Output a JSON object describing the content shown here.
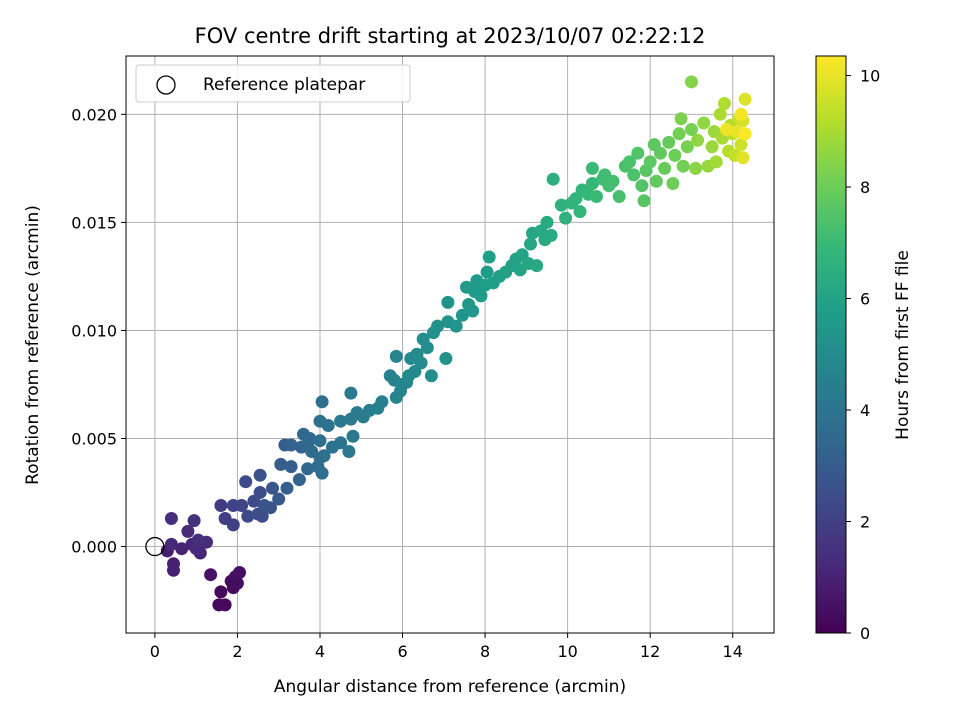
{
  "chart_data": {
    "type": "scatter",
    "title": "FOV centre drift starting at 2023/10/07 02:22:12",
    "xlabel": "Angular distance from reference (arcmin)",
    "ylabel": "Rotation from reference (arcmin)",
    "xlim": [
      -0.7,
      15.0
    ],
    "ylim": [
      -0.004,
      0.0227
    ],
    "x_ticks": [
      0,
      2,
      4,
      6,
      8,
      10,
      12,
      14
    ],
    "x_tick_labels": [
      "0",
      "2",
      "4",
      "6",
      "8",
      "10",
      "12",
      "14"
    ],
    "y_ticks": [
      0.0,
      0.005,
      0.01,
      0.015,
      0.02
    ],
    "y_tick_labels": [
      "0.000",
      "0.005",
      "0.010",
      "0.015",
      "0.020"
    ],
    "grid": true,
    "legend": {
      "placement": "top-left",
      "entries": [
        {
          "label": "Reference platepar",
          "marker": "open-circle"
        }
      ]
    },
    "reference_point": {
      "x": 0.0,
      "y": 0.0
    },
    "colorbar": {
      "label": "Hours from first FF file",
      "range": [
        0,
        10.35
      ],
      "ticks": [
        0,
        2,
        4,
        6,
        8,
        10
      ],
      "tick_labels": [
        "0",
        "2",
        "4",
        "6",
        "8",
        "10"
      ],
      "colormap": "viridis"
    },
    "colormap_stops": [
      "#440154",
      "#482878",
      "#3e4989",
      "#31688e",
      "#26828e",
      "#1f9e89",
      "#35b779",
      "#6ece58",
      "#b5de2b",
      "#fde725"
    ],
    "points": [
      [
        1.55,
        -0.0027,
        0.2
      ],
      [
        1.7,
        -0.0027,
        0.2
      ],
      [
        1.6,
        -0.0021,
        0.25
      ],
      [
        1.9,
        -0.0019,
        0.3
      ],
      [
        1.85,
        -0.0016,
        0.3
      ],
      [
        2.0,
        -0.0017,
        0.35
      ],
      [
        1.95,
        -0.0014,
        0.4
      ],
      [
        2.05,
        -0.0012,
        0.45
      ],
      [
        1.35,
        -0.0013,
        0.5
      ],
      [
        0.3,
        -0.0002,
        0.8
      ],
      [
        0.45,
        -0.0008,
        0.9
      ],
      [
        0.45,
        -0.0011,
        0.9
      ],
      [
        0.65,
        -0.0001,
        1.0
      ],
      [
        0.9,
        0.0001,
        1.1
      ],
      [
        1.1,
        -0.0003,
        1.1
      ],
      [
        1.0,
        -0.0001,
        1.2
      ],
      [
        0.4,
        0.0001,
        1.2
      ],
      [
        1.25,
        0.0002,
        1.3
      ],
      [
        0.8,
        0.0007,
        1.3
      ],
      [
        1.05,
        0.0003,
        1.4
      ],
      [
        0.4,
        0.0013,
        1.4
      ],
      [
        0.95,
        0.0012,
        1.5
      ],
      [
        1.6,
        0.0019,
        1.8
      ],
      [
        1.7,
        0.0013,
        1.9
      ],
      [
        1.9,
        0.001,
        2.0
      ],
      [
        1.9,
        0.0019,
        2.1
      ],
      [
        2.1,
        0.0019,
        2.2
      ],
      [
        2.25,
        0.0014,
        2.3
      ],
      [
        2.2,
        0.003,
        2.3
      ],
      [
        2.4,
        0.0021,
        2.4
      ],
      [
        2.5,
        0.0015,
        2.5
      ],
      [
        2.55,
        0.0025,
        2.5
      ],
      [
        2.6,
        0.0014,
        2.5
      ],
      [
        2.55,
        0.0033,
        2.6
      ],
      [
        2.65,
        0.0019,
        2.7
      ],
      [
        2.8,
        0.0018,
        2.7
      ],
      [
        2.85,
        0.0027,
        2.8
      ],
      [
        3.0,
        0.0022,
        2.9
      ],
      [
        3.05,
        0.0038,
        3.0
      ],
      [
        3.15,
        0.0047,
        3.0
      ],
      [
        3.2,
        0.0027,
        3.1
      ],
      [
        3.3,
        0.0037,
        3.1
      ],
      [
        3.3,
        0.0047,
        3.2
      ],
      [
        3.5,
        0.0031,
        3.3
      ],
      [
        3.55,
        0.0046,
        3.3
      ],
      [
        3.6,
        0.0052,
        3.4
      ],
      [
        3.7,
        0.0036,
        3.4
      ],
      [
        3.7,
        0.0047,
        3.5
      ],
      [
        3.75,
        0.005,
        3.5
      ],
      [
        3.8,
        0.0044,
        3.6
      ],
      [
        3.95,
        0.0037,
        3.6
      ],
      [
        4.0,
        0.0041,
        3.7
      ],
      [
        4.05,
        0.0034,
        3.7
      ],
      [
        4.0,
        0.0049,
        3.7
      ],
      [
        4.1,
        0.0042,
        3.8
      ],
      [
        4.0,
        0.0058,
        3.8
      ],
      [
        4.05,
        0.0067,
        3.8
      ],
      [
        4.2,
        0.0056,
        3.9
      ],
      [
        4.3,
        0.0046,
        3.9
      ],
      [
        4.5,
        0.0048,
        4.0
      ],
      [
        4.5,
        0.0058,
        4.1
      ],
      [
        4.7,
        0.0044,
        4.1
      ],
      [
        4.75,
        0.0059,
        4.2
      ],
      [
        4.8,
        0.0051,
        4.2
      ],
      [
        4.75,
        0.0071,
        4.2
      ],
      [
        4.9,
        0.0062,
        4.3
      ],
      [
        5.05,
        0.006,
        4.3
      ],
      [
        5.2,
        0.0063,
        4.4
      ],
      [
        5.5,
        0.0067,
        4.5
      ],
      [
        5.4,
        0.0064,
        4.5
      ],
      [
        5.7,
        0.0079,
        4.6
      ],
      [
        5.8,
        0.0077,
        4.6
      ],
      [
        5.85,
        0.0069,
        4.7
      ],
      [
        5.85,
        0.0088,
        4.7
      ],
      [
        5.95,
        0.0072,
        4.7
      ],
      [
        6.0,
        0.0075,
        4.8
      ],
      [
        6.1,
        0.0076,
        4.8
      ],
      [
        6.15,
        0.0079,
        4.9
      ],
      [
        6.3,
        0.0081,
        4.9
      ],
      [
        6.2,
        0.0087,
        4.9
      ],
      [
        6.35,
        0.0089,
        5.0
      ],
      [
        6.45,
        0.0085,
        5.0
      ],
      [
        6.5,
        0.0096,
        5.1
      ],
      [
        6.6,
        0.0092,
        5.1
      ],
      [
        6.7,
        0.0079,
        5.1
      ],
      [
        6.75,
        0.0099,
        5.2
      ],
      [
        6.85,
        0.0102,
        5.2
      ],
      [
        7.05,
        0.0087,
        5.3
      ],
      [
        7.1,
        0.0104,
        5.3
      ],
      [
        7.1,
        0.0113,
        5.3
      ],
      [
        7.3,
        0.0102,
        5.4
      ],
      [
        7.45,
        0.0107,
        5.4
      ],
      [
        7.6,
        0.0112,
        5.5
      ],
      [
        7.55,
        0.012,
        5.5
      ],
      [
        7.7,
        0.0109,
        5.5
      ],
      [
        7.75,
        0.0118,
        5.6
      ],
      [
        7.8,
        0.0123,
        5.6
      ],
      [
        7.9,
        0.0116,
        5.7
      ],
      [
        8.0,
        0.0121,
        5.7
      ],
      [
        8.05,
        0.0127,
        5.7
      ],
      [
        8.1,
        0.0134,
        5.8
      ],
      [
        8.2,
        0.0122,
        5.8
      ],
      [
        8.35,
        0.0125,
        5.8
      ],
      [
        8.5,
        0.0127,
        5.9
      ],
      [
        8.65,
        0.013,
        5.9
      ],
      [
        8.75,
        0.0133,
        5.9
      ],
      [
        8.85,
        0.0128,
        6.0
      ],
      [
        8.9,
        0.0135,
        6.0
      ],
      [
        9.05,
        0.0131,
        6.1
      ],
      [
        9.1,
        0.014,
        6.1
      ],
      [
        9.15,
        0.0145,
        6.1
      ],
      [
        9.25,
        0.013,
        6.2
      ],
      [
        9.35,
        0.0146,
        6.2
      ],
      [
        9.45,
        0.0142,
        6.3
      ],
      [
        9.6,
        0.0144,
        6.3
      ],
      [
        9.5,
        0.015,
        6.3
      ],
      [
        9.65,
        0.017,
        6.5
      ],
      [
        9.85,
        0.0158,
        6.6
      ],
      [
        9.95,
        0.0152,
        6.6
      ],
      [
        10.1,
        0.0159,
        6.7
      ],
      [
        10.2,
        0.0161,
        6.7
      ],
      [
        10.3,
        0.0155,
        6.8
      ],
      [
        10.35,
        0.0165,
        6.8
      ],
      [
        10.5,
        0.0163,
        6.9
      ],
      [
        10.6,
        0.0168,
        6.9
      ],
      [
        10.6,
        0.0175,
        7.0
      ],
      [
        10.7,
        0.0162,
        7.0
      ],
      [
        10.85,
        0.017,
        7.1
      ],
      [
        10.9,
        0.0172,
        7.1
      ],
      [
        11.0,
        0.0167,
        7.2
      ],
      [
        11.1,
        0.0169,
        7.2
      ],
      [
        11.25,
        0.0162,
        7.3
      ],
      [
        11.4,
        0.0176,
        7.3
      ],
      [
        11.5,
        0.0178,
        7.4
      ],
      [
        11.6,
        0.0172,
        7.4
      ],
      [
        11.7,
        0.0182,
        7.5
      ],
      [
        11.8,
        0.0167,
        7.5
      ],
      [
        11.9,
        0.0174,
        7.6
      ],
      [
        11.85,
        0.016,
        7.6
      ],
      [
        12.0,
        0.0178,
        7.7
      ],
      [
        12.1,
        0.0186,
        7.7
      ],
      [
        12.15,
        0.0169,
        7.8
      ],
      [
        12.25,
        0.0182,
        7.8
      ],
      [
        12.35,
        0.0175,
        7.9
      ],
      [
        12.45,
        0.0187,
        7.9
      ],
      [
        12.55,
        0.0168,
        8.0
      ],
      [
        12.6,
        0.0181,
        8.0
      ],
      [
        12.7,
        0.0191,
        8.1
      ],
      [
        12.8,
        0.0176,
        8.1
      ],
      [
        12.9,
        0.0185,
        8.2
      ],
      [
        13.0,
        0.0193,
        8.2
      ],
      [
        12.75,
        0.0198,
        8.3
      ],
      [
        13.0,
        0.0215,
        8.4
      ],
      [
        13.1,
        0.0175,
        8.5
      ],
      [
        13.15,
        0.0188,
        8.6
      ],
      [
        13.3,
        0.0196,
        8.6
      ],
      [
        13.4,
        0.0176,
        8.7
      ],
      [
        13.5,
        0.0185,
        8.8
      ],
      [
        13.55,
        0.0192,
        8.8
      ],
      [
        13.6,
        0.0178,
        8.9
      ],
      [
        13.7,
        0.02,
        9.0
      ],
      [
        13.75,
        0.0189,
        9.0
      ],
      [
        13.8,
        0.0205,
        9.1
      ],
      [
        13.9,
        0.0183,
        9.2
      ],
      [
        13.95,
        0.0195,
        9.2
      ],
      [
        14.0,
        0.0191,
        9.3
      ],
      [
        14.05,
        0.0181,
        9.4
      ],
      [
        14.15,
        0.0198,
        9.5
      ],
      [
        14.2,
        0.0186,
        9.6
      ],
      [
        14.25,
        0.0197,
        9.7
      ],
      [
        14.3,
        0.0207,
        9.8
      ],
      [
        14.25,
        0.018,
        9.9
      ],
      [
        14.1,
        0.0192,
        10.0
      ],
      [
        13.85,
        0.0193,
        10.1
      ],
      [
        14.2,
        0.02,
        10.2
      ],
      [
        14.3,
        0.0191,
        10.3
      ]
    ]
  }
}
